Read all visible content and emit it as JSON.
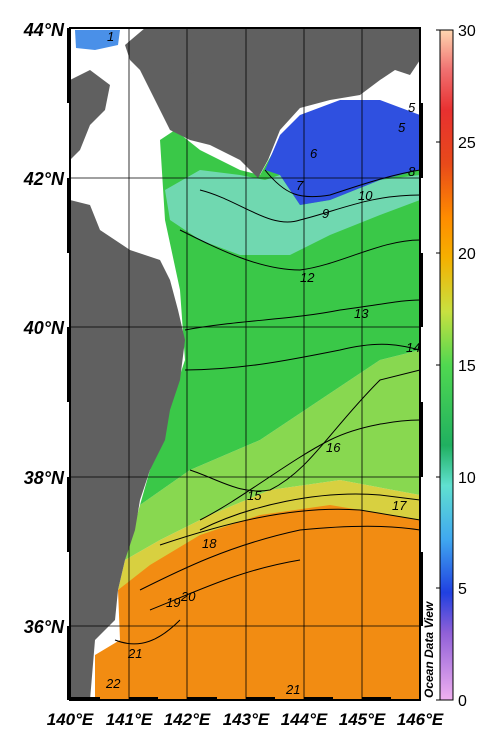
{
  "map": {
    "lat_labels": [
      "44°N",
      "42°N",
      "40°N",
      "38°N",
      "36°N"
    ],
    "lon_labels": [
      "140°E",
      "141°E",
      "142°E",
      "143°E",
      "144°E",
      "145°E",
      "146°E"
    ],
    "contour_labels": [
      "1",
      "5",
      "5",
      "6",
      "7",
      "8",
      "9",
      "10",
      "12",
      "13",
      "14",
      "15",
      "16",
      "17",
      "18",
      "19",
      "20",
      "21",
      "21",
      "22"
    ],
    "colorbar": {
      "ticks": [
        "30",
        "25",
        "20",
        "15",
        "10",
        "5",
        "0"
      ],
      "watermark": "Ocean Data View"
    }
  }
}
